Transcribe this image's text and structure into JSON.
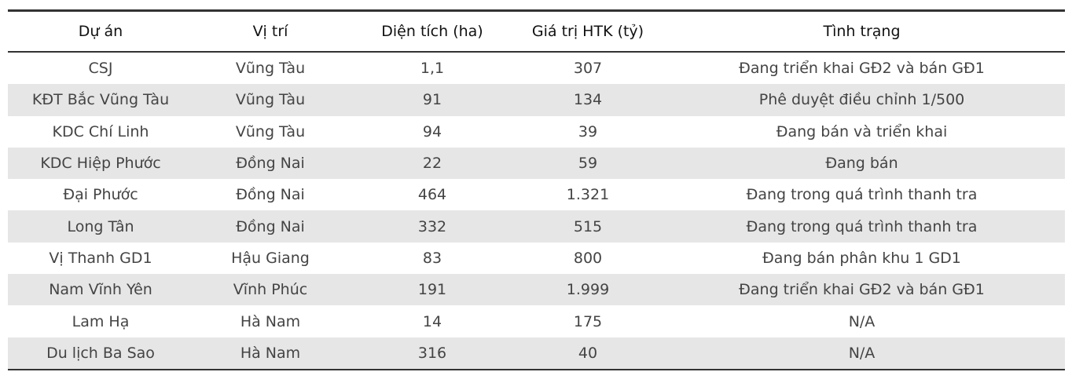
{
  "table": {
    "header": [
      "Dự án",
      "Vị trí",
      "Diện tích (ha)",
      "Giá trị HTK (tỷ)",
      "Tình trạng"
    ],
    "rows": [
      [
        "CSJ",
        "Vũng Tàu",
        "1,1",
        "307",
        "Đang triển khai GĐ2 và bán GĐ1"
      ],
      [
        "KĐT Bắc Vũng Tàu",
        "Vũng Tàu",
        "91",
        "134",
        "Phê duyệt điều chỉnh 1/500"
      ],
      [
        "KDC Chí Linh",
        "Vũng Tàu",
        "94",
        "39",
        "Đang bán và triển khai"
      ],
      [
        "KDC Hiệp Phước",
        "Đồng Nai",
        "22",
        "59",
        "Đang bán"
      ],
      [
        "Đại Phước",
        "Đồng Nai",
        "464",
        "1.321",
        "Đang trong quá trình thanh tra"
      ],
      [
        "Long Tân",
        "Đồng Nai",
        "332",
        "515",
        "Đang trong quá trình thanh tra"
      ],
      [
        "Vị Thanh GD1",
        "Hậu Giang",
        "83",
        "800",
        "Đang bán phân khu 1 GD1"
      ],
      [
        "Nam Vĩnh Yên",
        "Vĩnh Phúc",
        "191",
        "1.999",
        "Đang triển khai GĐ2 và bán GĐ1"
      ],
      [
        "Lam Hạ",
        "Hà Nam",
        "14",
        "175",
        "N/A"
      ],
      [
        "Du lịch Ba Sao",
        "Hà Nam",
        "316",
        "40",
        "N/A"
      ]
    ]
  }
}
